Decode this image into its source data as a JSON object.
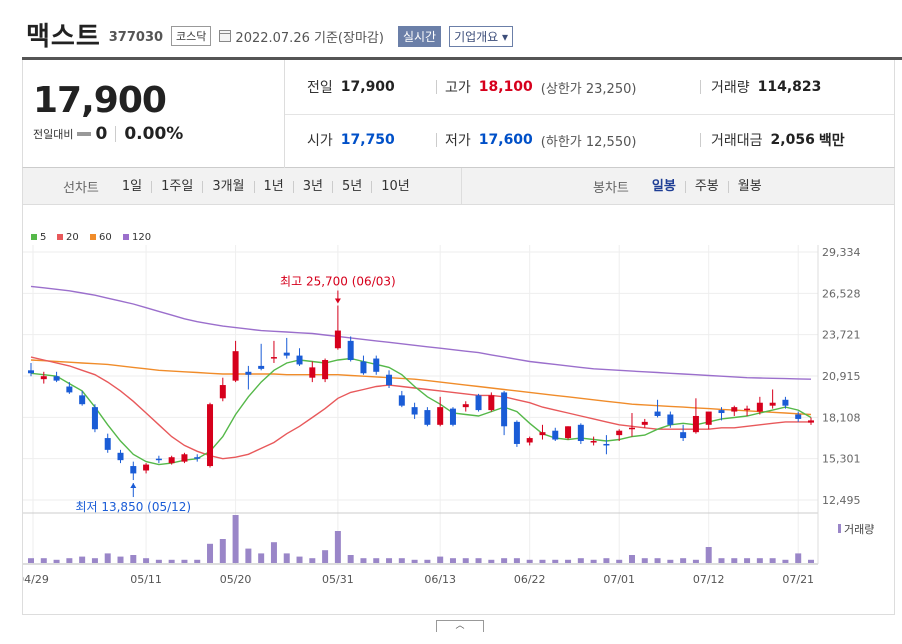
{
  "header": {
    "name": "맥스트",
    "code": "377030",
    "market": "코스닥",
    "date": "2022.07.26 기준(장마감)",
    "realtime": "실시간",
    "company_overview": "기업개요 ▾"
  },
  "summary": {
    "price": "17,900",
    "change_label": "전일대비",
    "change_value": "0",
    "change_pct": "0.00%",
    "prev_label": "전일",
    "prev_value": "17,900",
    "high_label": "고가",
    "high_value": "18,100",
    "upper_limit": "(상한가 23,250)",
    "volume_label": "거래량",
    "volume_value": "114,823",
    "open_label": "시가",
    "open_value": "17,750",
    "low_label": "저가",
    "low_value": "17,600",
    "lower_limit": "(하한가 12,550)",
    "amount_label": "거래대금",
    "amount_value": "2,056",
    "amount_unit": "백만"
  },
  "period_bar": {
    "line_title": "선차트",
    "line_items": [
      "1일",
      "1주일",
      "3개월",
      "1년",
      "3년",
      "5년",
      "10년"
    ],
    "candle_title": "봉차트",
    "candle_items": [
      "일봉",
      "주봉",
      "월봉"
    ],
    "active_candle": "일봉"
  },
  "legend": [
    {
      "label": "5",
      "color": "#55b849"
    },
    {
      "label": "20",
      "color": "#e8595b"
    },
    {
      "label": "60",
      "color": "#f08c2a"
    },
    {
      "label": "120",
      "color": "#9b6fcc"
    }
  ],
  "chart_data": {
    "type": "candlestick",
    "y_ticks": [
      "29,334",
      "26,528",
      "23,721",
      "20,915",
      "18,108",
      "15,301",
      "12,495"
    ],
    "ylim": [
      12495,
      29334
    ],
    "x_ticks": [
      "04/29",
      "05/11",
      "05/20",
      "05/31",
      "06/13",
      "06/22",
      "07/01",
      "07/12",
      "07/21"
    ],
    "high_annotation": "최고 25,700 (06/03)",
    "low_annotation": "최저 13,850 (05/12)",
    "volume_label": "거래량",
    "up_color": "#d6001c",
    "down_color": "#1a5cd6",
    "candles": [
      {
        "o": 21300,
        "h": 21800,
        "l": 20900,
        "c": 21100
      },
      {
        "o": 20700,
        "h": 21200,
        "l": 20400,
        "c": 20900
      },
      {
        "o": 20900,
        "h": 21200,
        "l": 20500,
        "c": 20600
      },
      {
        "o": 20200,
        "h": 20500,
        "l": 19700,
        "c": 19800
      },
      {
        "o": 19600,
        "h": 19900,
        "l": 18900,
        "c": 19000
      },
      {
        "o": 18800,
        "h": 19000,
        "l": 17100,
        "c": 17300
      },
      {
        "o": 16700,
        "h": 17000,
        "l": 15700,
        "c": 15900
      },
      {
        "o": 15700,
        "h": 15900,
        "l": 15000,
        "c": 15200
      },
      {
        "o": 14800,
        "h": 15100,
        "l": 13850,
        "c": 14300
      },
      {
        "o": 14500,
        "h": 15000,
        "l": 14300,
        "c": 14900
      },
      {
        "o": 15300,
        "h": 15500,
        "l": 15000,
        "c": 15200
      },
      {
        "o": 15000,
        "h": 15500,
        "l": 14900,
        "c": 15400
      },
      {
        "o": 15100,
        "h": 15700,
        "l": 15000,
        "c": 15600
      },
      {
        "o": 15400,
        "h": 15600,
        "l": 15100,
        "c": 15300
      },
      {
        "o": 14800,
        "h": 19100,
        "l": 14700,
        "c": 19000
      },
      {
        "o": 19400,
        "h": 20800,
        "l": 19200,
        "c": 20300
      },
      {
        "o": 20600,
        "h": 23300,
        "l": 20500,
        "c": 22600
      },
      {
        "o": 21200,
        "h": 21600,
        "l": 20000,
        "c": 21000
      },
      {
        "o": 21600,
        "h": 23100,
        "l": 21300,
        "c": 21400
      },
      {
        "o": 22100,
        "h": 23300,
        "l": 21800,
        "c": 22200
      },
      {
        "o": 22500,
        "h": 23500,
        "l": 22100,
        "c": 22300
      },
      {
        "o": 22300,
        "h": 22800,
        "l": 21600,
        "c": 21700
      },
      {
        "o": 20800,
        "h": 21900,
        "l": 20500,
        "c": 21500
      },
      {
        "o": 20700,
        "h": 22100,
        "l": 20500,
        "c": 22000
      },
      {
        "o": 22800,
        "h": 25700,
        "l": 22700,
        "c": 24000
      },
      {
        "o": 23300,
        "h": 23600,
        "l": 21900,
        "c": 22000
      },
      {
        "o": 21900,
        "h": 22300,
        "l": 21000,
        "c": 21100
      },
      {
        "o": 22100,
        "h": 22300,
        "l": 21000,
        "c": 21200
      },
      {
        "o": 21000,
        "h": 21300,
        "l": 20100,
        "c": 20300
      },
      {
        "o": 19600,
        "h": 19900,
        "l": 18800,
        "c": 18900
      },
      {
        "o": 18800,
        "h": 19100,
        "l": 18000,
        "c": 18300
      },
      {
        "o": 18600,
        "h": 18800,
        "l": 17500,
        "c": 17600
      },
      {
        "o": 17600,
        "h": 19500,
        "l": 17500,
        "c": 18800
      },
      {
        "o": 18700,
        "h": 18800,
        "l": 17500,
        "c": 17600
      },
      {
        "o": 18800,
        "h": 19200,
        "l": 18500,
        "c": 19000
      },
      {
        "o": 19600,
        "h": 19700,
        "l": 18500,
        "c": 18600
      },
      {
        "o": 18600,
        "h": 19800,
        "l": 18500,
        "c": 19600
      },
      {
        "o": 19800,
        "h": 19900,
        "l": 16900,
        "c": 17500
      },
      {
        "o": 17800,
        "h": 17900,
        "l": 16100,
        "c": 16300
      },
      {
        "o": 16400,
        "h": 16800,
        "l": 16200,
        "c": 16700
      },
      {
        "o": 16900,
        "h": 17600,
        "l": 16600,
        "c": 17100
      },
      {
        "o": 17200,
        "h": 17400,
        "l": 16500,
        "c": 16600
      },
      {
        "o": 16700,
        "h": 17500,
        "l": 16600,
        "c": 17500
      },
      {
        "o": 17600,
        "h": 17700,
        "l": 16300,
        "c": 16500
      },
      {
        "o": 16400,
        "h": 16800,
        "l": 16200,
        "c": 16500
      },
      {
        "o": 16300,
        "h": 16900,
        "l": 15600,
        "c": 16200
      },
      {
        "o": 16900,
        "h": 17300,
        "l": 16500,
        "c": 17200
      },
      {
        "o": 17300,
        "h": 18400,
        "l": 16800,
        "c": 17400
      },
      {
        "o": 17600,
        "h": 18000,
        "l": 17400,
        "c": 17800
      },
      {
        "o": 18500,
        "h": 19300,
        "l": 18100,
        "c": 18200
      },
      {
        "o": 18300,
        "h": 18500,
        "l": 17400,
        "c": 17600
      },
      {
        "o": 17100,
        "h": 17600,
        "l": 16500,
        "c": 16700
      },
      {
        "o": 17100,
        "h": 19400,
        "l": 17000,
        "c": 18200
      },
      {
        "o": 17600,
        "h": 18400,
        "l": 17300,
        "c": 18500
      },
      {
        "o": 18600,
        "h": 18800,
        "l": 17900,
        "c": 18400
      },
      {
        "o": 18500,
        "h": 18900,
        "l": 18200,
        "c": 18800
      },
      {
        "o": 18600,
        "h": 18900,
        "l": 18200,
        "c": 18700
      },
      {
        "o": 18500,
        "h": 19500,
        "l": 18300,
        "c": 19100
      },
      {
        "o": 18900,
        "h": 20000,
        "l": 18700,
        "c": 19100
      },
      {
        "o": 19300,
        "h": 19500,
        "l": 18700,
        "c": 18900
      },
      {
        "o": 18300,
        "h": 18500,
        "l": 17800,
        "c": 18000
      },
      {
        "o": 17750,
        "h": 18100,
        "l": 17600,
        "c": 17900
      }
    ],
    "ma5": [
      21100,
      21000,
      20900,
      20400,
      19900,
      18800,
      17600,
      16500,
      15600,
      15100,
      14900,
      15000,
      15200,
      15300,
      15800,
      16800,
      18300,
      19500,
      20500,
      21300,
      21800,
      22000,
      21900,
      21800,
      22000,
      22100,
      21900,
      21700,
      21500,
      21000,
      20200,
      19500,
      19000,
      18400,
      18300,
      18200,
      18500,
      18800,
      18500,
      17700,
      17000,
      16700,
      16600,
      16700,
      16600,
      16500,
      16600,
      16800,
      16900,
      17300,
      17600,
      17700,
      17600,
      17800,
      18000,
      18100,
      18200,
      18400,
      18600,
      18800,
      18600,
      18100
    ],
    "ma20": [
      22200,
      22000,
      21800,
      21600,
      21300,
      21000,
      20500,
      19900,
      19200,
      18400,
      17600,
      16800,
      16200,
      15800,
      15500,
      15300,
      15400,
      15600,
      16000,
      16400,
      17000,
      17500,
      18100,
      18700,
      19400,
      19800,
      20000,
      20200,
      20300,
      20200,
      20100,
      20000,
      19900,
      19800,
      19700,
      19600,
      19600,
      19500,
      19300,
      19100,
      18800,
      18600,
      18400,
      18200,
      18000,
      17800,
      17600,
      17500,
      17400,
      17300,
      17300,
      17300,
      17300,
      17300,
      17400,
      17400,
      17500,
      17600,
      17700,
      17800,
      17800,
      17800
    ],
    "ma60": [
      22000,
      21950,
      21900,
      21850,
      21800,
      21750,
      21700,
      21600,
      21500,
      21400,
      21300,
      21250,
      21200,
      21150,
      21100,
      21050,
      21050,
      21050,
      21050,
      21050,
      21000,
      21000,
      21000,
      21000,
      21000,
      20950,
      20900,
      20850,
      20800,
      20750,
      20700,
      20600,
      20500,
      20400,
      20300,
      20200,
      20100,
      20000,
      19900,
      19800,
      19700,
      19600,
      19500,
      19400,
      19300,
      19200,
      19100,
      19000,
      18950,
      18900,
      18850,
      18800,
      18750,
      18700,
      18650,
      18600,
      18550,
      18500,
      18450,
      18400,
      18350,
      18300
    ],
    "ma120": [
      27000,
      26900,
      26800,
      26700,
      26550,
      26400,
      26200,
      26000,
      25800,
      25550,
      25300,
      25050,
      24800,
      24600,
      24450,
      24300,
      24200,
      24100,
      24000,
      23950,
      23900,
      23850,
      23800,
      23700,
      23600,
      23500,
      23400,
      23300,
      23200,
      23100,
      23000,
      22900,
      22800,
      22700,
      22600,
      22500,
      22350,
      22200,
      22050,
      21900,
      21800,
      21700,
      21600,
      21500,
      21400,
      21350,
      21300,
      21250,
      21200,
      21150,
      21100,
      21050,
      21000,
      20950,
      20900,
      20850,
      20800,
      20780,
      20760,
      20740,
      20720,
      20700
    ],
    "volume": [
      3,
      3,
      2,
      3,
      4,
      3,
      6,
      4,
      5,
      3,
      2,
      2,
      2,
      2,
      12,
      15,
      30,
      9,
      6,
      13,
      6,
      4,
      3,
      8,
      20,
      5,
      3,
      3,
      3,
      3,
      2,
      2,
      4,
      3,
      3,
      3,
      2,
      3,
      3,
      2,
      2,
      2,
      2,
      3,
      2,
      3,
      2,
      5,
      3,
      3,
      2,
      3,
      2,
      10,
      3,
      3,
      3,
      3,
      3,
      2,
      6,
      2
    ]
  }
}
